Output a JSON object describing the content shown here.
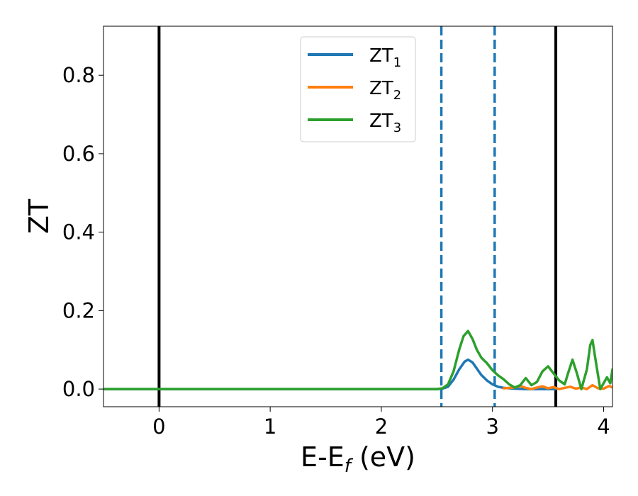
{
  "colors": {
    "zt1": "#1f77b4",
    "zt2": "#ff7f0e",
    "zt3": "#2ca02c",
    "ref_line": "#000000",
    "dashed_line": "#1f77b4"
  },
  "chart_data": {
    "type": "line",
    "title": "",
    "xlabel_main": "E-E",
    "xlabel_sub": "f",
    "xlabel_unit": " (eV)",
    "ylabel": "ZT",
    "xlim": [
      -0.5,
      4.08
    ],
    "ylim": [
      -0.045,
      0.925
    ],
    "grid": false,
    "legend_position": "upper center",
    "x_ticks": [
      {
        "value": 0,
        "label": "0"
      },
      {
        "value": 1,
        "label": "1"
      },
      {
        "value": 2,
        "label": "2"
      },
      {
        "value": 3,
        "label": "3"
      },
      {
        "value": 4,
        "label": "4"
      }
    ],
    "y_ticks": [
      {
        "value": 0.0,
        "label": "0.0"
      },
      {
        "value": 0.2,
        "label": "0.2"
      },
      {
        "value": 0.4,
        "label": "0.4"
      },
      {
        "value": 0.6,
        "label": "0.6"
      },
      {
        "value": 0.8,
        "label": "0.8"
      }
    ],
    "vertical_lines": [
      {
        "x": 0.0,
        "style": "solid",
        "color": "#000000"
      },
      {
        "x": 3.57,
        "style": "solid",
        "color": "#000000"
      },
      {
        "x": 2.54,
        "style": "dashed",
        "color": "#1f77b4"
      },
      {
        "x": 3.02,
        "style": "dashed",
        "color": "#1f77b4"
      }
    ],
    "series": [
      {
        "name": "ZT",
        "name_sub": "1",
        "color": "#1f77b4",
        "x": [
          -0.5,
          2.5,
          2.55,
          2.6,
          2.65,
          2.7,
          2.75,
          2.78,
          2.82,
          2.86,
          2.9,
          2.95,
          3.0,
          3.05,
          3.1,
          3.2,
          3.3,
          3.4,
          3.5,
          3.57
        ],
        "y": [
          0.0,
          0.0,
          0.001,
          0.006,
          0.024,
          0.05,
          0.07,
          0.075,
          0.068,
          0.052,
          0.036,
          0.022,
          0.012,
          0.006,
          0.003,
          0.001,
          0.0,
          0.0,
          0.0,
          0.0
        ]
      },
      {
        "name": "ZT",
        "name_sub": "2",
        "color": "#ff7f0e",
        "x": [
          3.1,
          3.2,
          3.25,
          3.3,
          3.35,
          3.4,
          3.45,
          3.5,
          3.55,
          3.6,
          3.65,
          3.7,
          3.75,
          3.8,
          3.85,
          3.9,
          3.95,
          4.0,
          4.05,
          4.08
        ],
        "y": [
          0.002,
          0.004,
          0.008,
          0.003,
          0.0,
          0.004,
          0.007,
          0.002,
          0.005,
          0.0,
          0.003,
          0.006,
          0.001,
          0.004,
          0.0,
          0.01,
          0.002,
          0.001,
          0.008,
          0.004
        ]
      },
      {
        "name": "ZT",
        "name_sub": "3",
        "color": "#2ca02c",
        "x": [
          -0.5,
          2.5,
          2.55,
          2.6,
          2.65,
          2.7,
          2.74,
          2.78,
          2.82,
          2.86,
          2.9,
          2.95,
          3.0,
          3.05,
          3.1,
          3.15,
          3.2,
          3.25,
          3.3,
          3.35,
          3.4,
          3.45,
          3.5,
          3.55,
          3.6,
          3.65,
          3.68,
          3.72,
          3.76,
          3.8,
          3.85,
          3.88,
          3.9,
          3.93,
          3.97,
          4.0,
          4.03,
          4.06,
          4.08
        ],
        "y": [
          0.0,
          0.0,
          0.002,
          0.012,
          0.045,
          0.1,
          0.135,
          0.148,
          0.128,
          0.1,
          0.08,
          0.066,
          0.048,
          0.035,
          0.025,
          0.012,
          0.004,
          0.01,
          0.028,
          0.01,
          0.018,
          0.045,
          0.058,
          0.04,
          0.022,
          0.012,
          0.04,
          0.075,
          0.04,
          0.0,
          0.05,
          0.112,
          0.125,
          0.07,
          0.0,
          0.015,
          0.03,
          0.015,
          0.05
        ]
      }
    ]
  }
}
